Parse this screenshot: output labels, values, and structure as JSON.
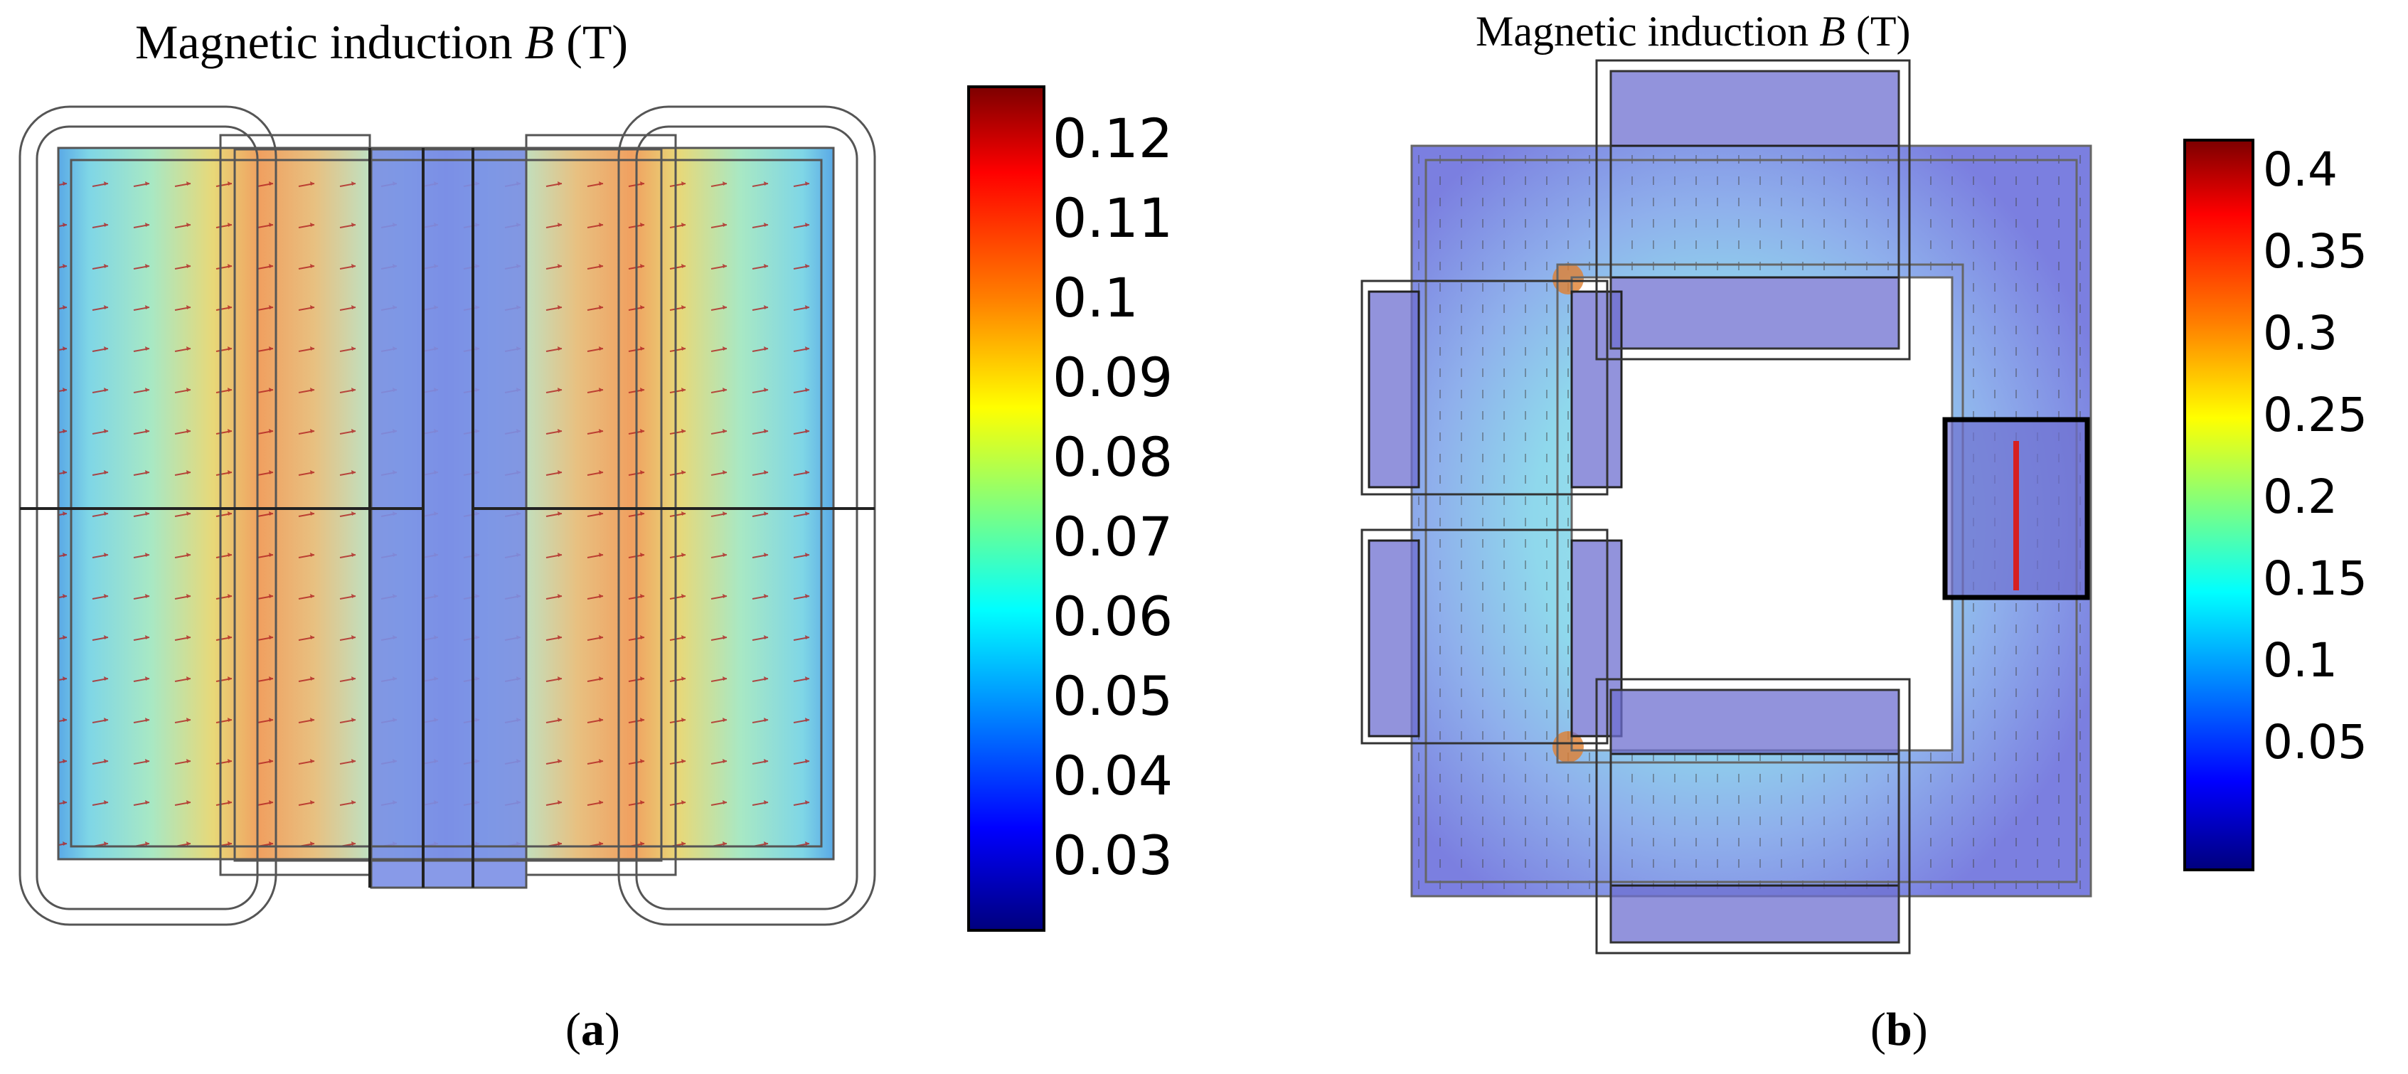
{
  "figure": {
    "panel_a": {
      "title_prefix": "Magnetic induction ",
      "title_var": "B",
      "title_unit": " (T)",
      "label_open": "(",
      "label_letter": "a",
      "label_close": ")",
      "colorbar_ticks": [
        "0.12",
        "0.11",
        "0.1",
        "0.09",
        "0.08",
        "0.07",
        "0.06",
        "0.05",
        "0.04",
        "0.03"
      ]
    },
    "panel_b": {
      "title_prefix": "Magnetic induction ",
      "title_var": "B",
      "title_unit": " (T)",
      "label_open": "(",
      "label_letter": "b",
      "label_close": ")",
      "colorbar_ticks": [
        "0.4",
        "0.35",
        "0.3",
        "0.25",
        "0.2",
        "0.15",
        "0.1",
        "0.05"
      ]
    },
    "colors": {
      "jet": [
        "#00007f",
        "#0000ff",
        "#007fff",
        "#00ffff",
        "#7fff7f",
        "#ffff00",
        "#ff7f00",
        "#ff0000",
        "#7f0000"
      ],
      "core_blue": "#7b7fe0",
      "field_light": "#7fd6e6",
      "arrow": "#b02020",
      "sensor": "#d62020"
    }
  }
}
